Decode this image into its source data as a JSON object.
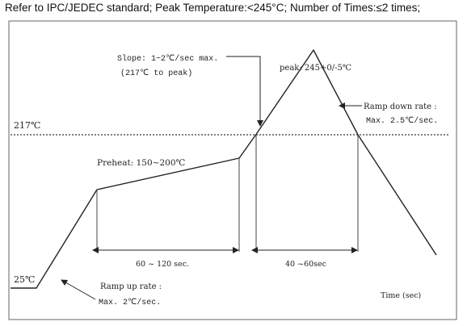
{
  "header": {
    "text": "Refer to IPC/JEDEC standard; Peak Temperature:<245°C; Number of Times:≤2 times;"
  },
  "diagram": {
    "temp_217": "217℃",
    "temp_25": "25℃",
    "slope_line1": "Slope: 1~2℃/sec max.",
    "slope_line2": "(217℃ to peak)",
    "peak": "peak: 245+0/-5℃",
    "ramp_down_line1": "Ramp down rate :",
    "ramp_down_line2": "Max. 2.5℃/sec.",
    "preheat": "Preheat: 150~200℃",
    "preheat_duration": "60 ~ 120 sec.",
    "reflow_duration": "40 ~60sec",
    "ramp_up_line1": "Ramp up rate :",
    "ramp_up_line2": "Max. 2℃/sec.",
    "time_axis": "Time (sec)"
  },
  "colors": {
    "line": "#222222",
    "frame": "#555555",
    "dotted": "#333333"
  }
}
